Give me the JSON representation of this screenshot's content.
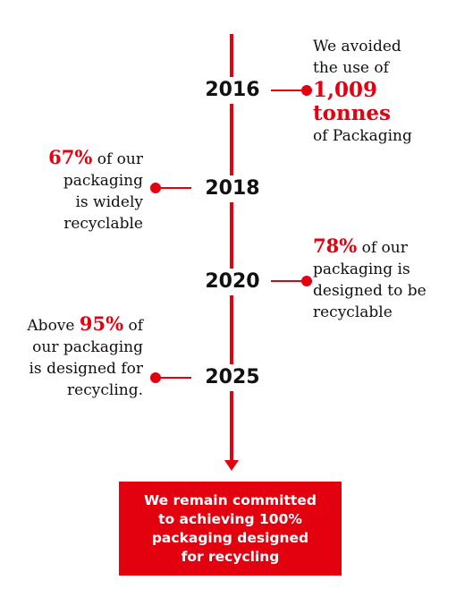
{
  "colors": {
    "accent": "#e3000f",
    "text": "#111111",
    "background": "#ffffff"
  },
  "timeline": {
    "milestones": [
      {
        "year": "2016",
        "side": "right",
        "lines": [
          "We avoided",
          "the use of",
          "1,009",
          "tonnes",
          "of Packaging"
        ]
      },
      {
        "year": "2018",
        "side": "left",
        "highlight": "67%",
        "lines": [
          "of our",
          "packaging",
          "is widely",
          "recyclable"
        ]
      },
      {
        "year": "2020",
        "side": "right",
        "highlight": "78%",
        "lines": [
          "of our",
          "packaging is",
          "designed to be",
          "recyclable"
        ]
      },
      {
        "year": "2025",
        "side": "left",
        "prefix": "Above",
        "highlight": "95%",
        "lines": [
          "of",
          "our packaging",
          "is designed for",
          "recycling."
        ]
      }
    ]
  },
  "callout": {
    "lines": [
      "We remain committed",
      "to achieving 100%",
      "packaging designed",
      "for recycling"
    ]
  }
}
